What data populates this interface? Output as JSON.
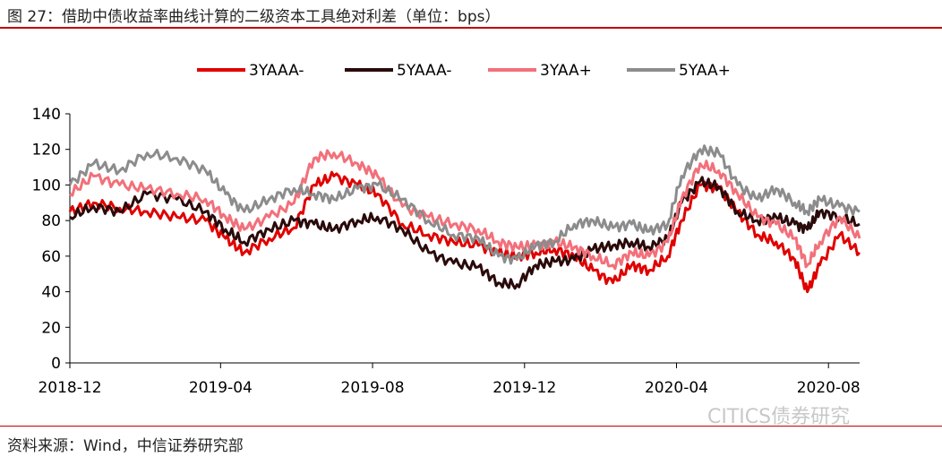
{
  "title": "图 27：借助中债收益率曲线计算的二级资本工具绝对利差（单位：bps）",
  "source": "资料来源：Wind，中信证券研究部",
  "watermark": "CITICS债券研究",
  "chart_data": {
    "type": "line",
    "title": "",
    "xlabel": "",
    "ylabel": "",
    "ylim": [
      0,
      140
    ],
    "yticks": [
      0,
      20,
      40,
      60,
      80,
      100,
      120,
      140
    ],
    "xlim": [
      "2018-12-01",
      "2020-08-26"
    ],
    "xticks": [
      "2018-12",
      "2019-04",
      "2019-08",
      "2019-12",
      "2020-04",
      "2020-08"
    ],
    "legend": "top",
    "grid": false,
    "series": [
      {
        "name": "3YAAA-",
        "color": "#e00000",
        "x": [
          "2018-12-01",
          "2018-12-20",
          "2019-01-10",
          "2019-02-01",
          "2019-02-25",
          "2019-03-20",
          "2019-04-05",
          "2019-04-20",
          "2019-05-10",
          "2019-05-30",
          "2019-06-15",
          "2019-07-01",
          "2019-07-20",
          "2019-08-05",
          "2019-08-25",
          "2019-09-15",
          "2019-10-05",
          "2019-10-25",
          "2019-11-10",
          "2019-11-25",
          "2019-12-10",
          "2019-12-25",
          "2020-01-10",
          "2020-01-25",
          "2020-02-10",
          "2020-02-25",
          "2020-03-10",
          "2020-03-25",
          "2020-04-05",
          "2020-04-20",
          "2020-05-05",
          "2020-05-20",
          "2020-06-05",
          "2020-06-20",
          "2020-07-05",
          "2020-07-15",
          "2020-07-25",
          "2020-08-10",
          "2020-08-26"
        ],
        "y": [
          85,
          90,
          87,
          85,
          82,
          80,
          70,
          62,
          70,
          76,
          100,
          105,
          100,
          95,
          78,
          72,
          68,
          66,
          62,
          60,
          62,
          64,
          60,
          52,
          45,
          55,
          52,
          60,
          80,
          100,
          98,
          85,
          72,
          68,
          58,
          40,
          55,
          72,
          62
        ]
      },
      {
        "name": "5YAAA-",
        "color": "#2a0a0a",
        "x": [
          "2018-12-01",
          "2018-12-20",
          "2019-01-10",
          "2019-02-01",
          "2019-02-25",
          "2019-03-20",
          "2019-04-05",
          "2019-04-20",
          "2019-05-10",
          "2019-05-30",
          "2019-06-15",
          "2019-07-01",
          "2019-07-20",
          "2019-08-05",
          "2019-08-25",
          "2019-09-15",
          "2019-10-05",
          "2019-10-25",
          "2019-11-10",
          "2019-11-25",
          "2019-12-10",
          "2019-12-25",
          "2020-01-10",
          "2020-01-25",
          "2020-02-10",
          "2020-02-25",
          "2020-03-10",
          "2020-03-25",
          "2020-04-05",
          "2020-04-20",
          "2020-05-05",
          "2020-05-20",
          "2020-06-05",
          "2020-06-20",
          "2020-07-05",
          "2020-07-15",
          "2020-07-25",
          "2020-08-10",
          "2020-08-26"
        ],
        "y": [
          82,
          88,
          85,
          95,
          92,
          85,
          75,
          68,
          75,
          80,
          78,
          75,
          80,
          82,
          75,
          62,
          56,
          54,
          45,
          44,
          55,
          57,
          58,
          64,
          66,
          68,
          65,
          70,
          90,
          102,
          99,
          85,
          80,
          82,
          78,
          75,
          85,
          82,
          78
        ]
      },
      {
        "name": "3YAA+",
        "color": "#f2707a",
        "x": [
          "2018-12-01",
          "2018-12-20",
          "2019-01-10",
          "2019-02-01",
          "2019-02-25",
          "2019-03-20",
          "2019-04-05",
          "2019-04-20",
          "2019-05-10",
          "2019-05-30",
          "2019-06-15",
          "2019-07-01",
          "2019-07-20",
          "2019-08-05",
          "2019-08-25",
          "2019-09-15",
          "2019-10-05",
          "2019-10-25",
          "2019-11-10",
          "2019-11-25",
          "2019-12-10",
          "2019-12-25",
          "2020-01-10",
          "2020-01-25",
          "2020-02-10",
          "2020-02-25",
          "2020-03-10",
          "2020-03-25",
          "2020-04-05",
          "2020-04-20",
          "2020-05-05",
          "2020-05-20",
          "2020-06-05",
          "2020-06-20",
          "2020-07-05",
          "2020-07-15",
          "2020-07-25",
          "2020-08-10",
          "2020-08-26"
        ],
        "y": [
          95,
          105,
          100,
          98,
          95,
          92,
          82,
          75,
          82,
          90,
          115,
          118,
          112,
          105,
          88,
          82,
          78,
          75,
          68,
          65,
          66,
          68,
          65,
          60,
          55,
          62,
          60,
          68,
          92,
          112,
          108,
          95,
          82,
          78,
          70,
          55,
          68,
          82,
          70
        ]
      },
      {
        "name": "5YAA+",
        "color": "#8c8c8c",
        "x": [
          "2018-12-01",
          "2018-12-20",
          "2019-01-10",
          "2019-02-01",
          "2019-02-25",
          "2019-03-20",
          "2019-04-05",
          "2019-04-20",
          "2019-05-10",
          "2019-05-30",
          "2019-06-15",
          "2019-07-01",
          "2019-07-20",
          "2019-08-05",
          "2019-08-25",
          "2019-09-15",
          "2019-10-05",
          "2019-10-25",
          "2019-11-10",
          "2019-11-25",
          "2019-12-10",
          "2019-12-25",
          "2020-01-10",
          "2020-01-25",
          "2020-02-10",
          "2020-02-25",
          "2020-03-10",
          "2020-03-25",
          "2020-04-05",
          "2020-04-20",
          "2020-05-05",
          "2020-05-20",
          "2020-06-05",
          "2020-06-20",
          "2020-07-05",
          "2020-07-15",
          "2020-07-25",
          "2020-08-10",
          "2020-08-26"
        ],
        "y": [
          100,
          112,
          108,
          118,
          115,
          108,
          95,
          85,
          92,
          98,
          95,
          92,
          98,
          100,
          92,
          80,
          72,
          70,
          60,
          58,
          66,
          68,
          78,
          80,
          76,
          78,
          74,
          78,
          105,
          120,
          118,
          100,
          92,
          98,
          90,
          85,
          92,
          88,
          85
        ]
      }
    ]
  }
}
